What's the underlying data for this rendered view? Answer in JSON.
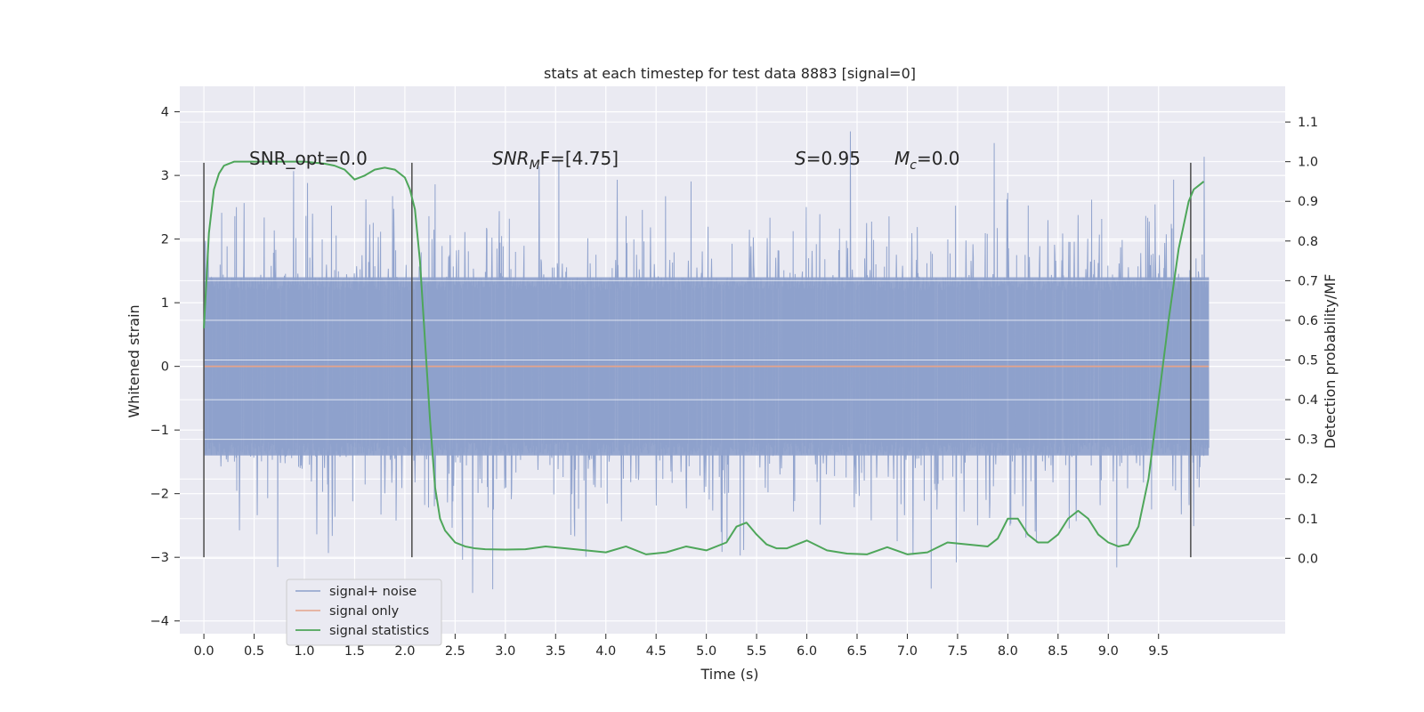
{
  "chart_data": {
    "type": "line",
    "title": "stats at each timestep for test data 8883 [signal=0]",
    "xlabel": "Time (s)",
    "ylabel": "Whitened strain",
    "y2label": "Detection probability/MF",
    "xlim": [
      -0.24,
      10.76
    ],
    "ylim": [
      -4.2,
      4.4
    ],
    "y2lim": [
      -0.19,
      1.19
    ],
    "xticks": [
      "0.0",
      "0.5",
      "1.0",
      "1.5",
      "2.0",
      "2.5",
      "3.0",
      "3.5",
      "4.0",
      "4.5",
      "5.0",
      "5.5",
      "6.0",
      "6.5",
      "7.0",
      "7.5",
      "8.0",
      "8.5",
      "9.0",
      "9.5"
    ],
    "yticks": [
      "4",
      "3",
      "2",
      "1",
      "0",
      "−1",
      "−2",
      "−3",
      "−4"
    ],
    "y2ticks": [
      "1.1",
      "1.0",
      "0.9",
      "0.8",
      "0.7",
      "0.6",
      "0.5",
      "0.4",
      "0.3",
      "0.2",
      "0.1",
      "0.0"
    ],
    "grid": true,
    "legend_position": "bottom-left",
    "colors": {
      "noise": "#8da0cb",
      "signal": "#e5a38a",
      "stats": "#4ea65a",
      "background": "#eaeaf2",
      "grid": "#ffffff",
      "vline": "#555555"
    },
    "annotations": {
      "snr_opt": "SNR_opt=0.0",
      "snr_mf_main": "SNR",
      "snr_mf_sub": "M",
      "snr_mf_rest": "F=[4.75]",
      "s_main": "S",
      "s_rest": "=0.95",
      "mc_main": "M",
      "mc_sub": "c",
      "mc_rest": "=0.0"
    },
    "vertical_lines_x": [
      0.0,
      2.07,
      9.82
    ],
    "vertical_lines_range": [
      -3.0,
      3.2
    ],
    "series": [
      {
        "name": "signal+ noise",
        "x_range": [
          0.0,
          10.0
        ],
        "band_y": [
          -1.4,
          1.4
        ],
        "peak_max": 4.05,
        "peak_min": -3.85
      },
      {
        "name": "signal only",
        "x": [
          0.0,
          10.0
        ],
        "y": [
          0.0,
          0.0
        ]
      },
      {
        "name": "signal statistics",
        "x": [
          0.0,
          0.05,
          0.1,
          0.15,
          0.2,
          0.3,
          0.5,
          0.8,
          1.0,
          1.2,
          1.3,
          1.4,
          1.5,
          1.6,
          1.7,
          1.8,
          1.9,
          2.0,
          2.05,
          2.1,
          2.15,
          2.2,
          2.25,
          2.3,
          2.35,
          2.4,
          2.5,
          2.6,
          2.7,
          2.8,
          3.0,
          3.2,
          3.4,
          3.6,
          3.8,
          4.0,
          4.2,
          4.4,
          4.6,
          4.8,
          5.0,
          5.2,
          5.3,
          5.4,
          5.5,
          5.6,
          5.7,
          5.8,
          6.0,
          6.2,
          6.4,
          6.6,
          6.8,
          7.0,
          7.2,
          7.4,
          7.6,
          7.8,
          7.9,
          8.0,
          8.1,
          8.2,
          8.3,
          8.4,
          8.5,
          8.6,
          8.7,
          8.8,
          8.9,
          9.0,
          9.1,
          9.2,
          9.3,
          9.4,
          9.5,
          9.6,
          9.7,
          9.8,
          9.85,
          9.9,
          9.95
        ],
        "y": [
          0.58,
          0.82,
          0.93,
          0.97,
          0.99,
          1.0,
          1.0,
          1.0,
          1.0,
          0.995,
          0.99,
          0.98,
          0.955,
          0.965,
          0.98,
          0.985,
          0.98,
          0.96,
          0.93,
          0.88,
          0.75,
          0.55,
          0.35,
          0.18,
          0.1,
          0.07,
          0.04,
          0.03,
          0.025,
          0.023,
          0.022,
          0.023,
          0.03,
          0.025,
          0.02,
          0.015,
          0.03,
          0.01,
          0.015,
          0.03,
          0.02,
          0.04,
          0.08,
          0.09,
          0.06,
          0.035,
          0.025,
          0.025,
          0.045,
          0.02,
          0.012,
          0.01,
          0.028,
          0.01,
          0.015,
          0.04,
          0.035,
          0.03,
          0.05,
          0.1,
          0.1,
          0.06,
          0.04,
          0.04,
          0.06,
          0.1,
          0.12,
          0.1,
          0.06,
          0.04,
          0.03,
          0.035,
          0.08,
          0.2,
          0.4,
          0.6,
          0.78,
          0.9,
          0.93,
          0.94,
          0.95
        ]
      }
    ]
  }
}
